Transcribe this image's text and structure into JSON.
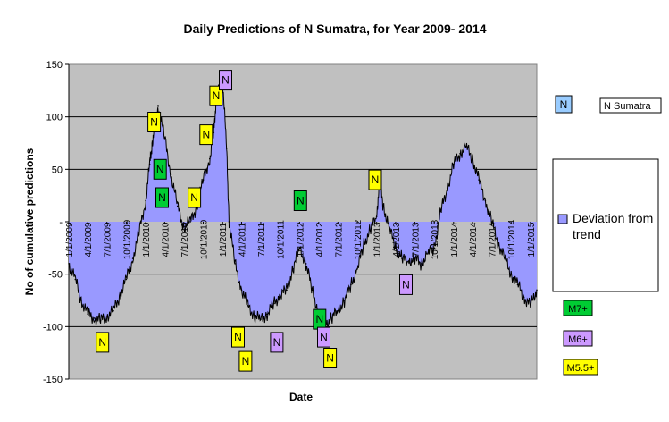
{
  "colors": {
    "plot_bg": "#c0c0c0",
    "area_fill": "#9999ff",
    "line": "#000000",
    "M7": "#00cc33",
    "M6": "#cc99ff",
    "M55": "#ffff00",
    "legend_box": "#99ccff"
  },
  "chart_data": {
    "type": "area",
    "title": "Daily Predictions of N Sumatra, for Year 2009- 2014",
    "xlabel": "Date",
    "ylabel": "No of cumulative predictions",
    "ylim": [
      -150,
      150
    ],
    "yticks": [
      150,
      100,
      50,
      0,
      -50,
      -100,
      -150
    ],
    "ytick_labels": [
      "150",
      "100",
      "50",
      "-",
      "-50",
      "-100",
      "-150"
    ],
    "xlim": [
      "2009-01-01",
      "2015-01-31"
    ],
    "xticks": [
      "1/1/2009",
      "4/1/2009",
      "7/1/2009",
      "10/1/2009",
      "1/1/2010",
      "4/1/2010",
      "7/1/2010",
      "10/1/2010",
      "1/1/2011",
      "4/1/2011",
      "7/1/2011",
      "10/1/2011",
      "1/1/2012",
      "4/1/2012",
      "7/1/2012",
      "10/1/2012",
      "1/1/2013",
      "4/1/2013",
      "7/1/2013",
      "10/1/2013",
      "1/1/2014",
      "4/1/2014",
      "7/1/2014",
      "10/1/2014",
      "1/1/2015"
    ],
    "grid": "horizontal",
    "series": [
      {
        "name": "Deviation from trend",
        "x": [
          "2009-01-01",
          "2009-02-01",
          "2009-03-01",
          "2009-04-01",
          "2009-05-01",
          "2009-06-01",
          "2009-07-01",
          "2009-08-01",
          "2009-09-01",
          "2009-10-01",
          "2009-11-01",
          "2009-12-01",
          "2010-01-01",
          "2010-01-20",
          "2010-02-01",
          "2010-02-15",
          "2010-03-01",
          "2010-04-01",
          "2010-05-01",
          "2010-06-01",
          "2010-07-01",
          "2010-08-01",
          "2010-09-01",
          "2010-10-01",
          "2010-11-01",
          "2010-11-20",
          "2010-12-01",
          "2010-12-20",
          "2011-01-01",
          "2011-01-20",
          "2011-02-01",
          "2011-03-01",
          "2011-04-01",
          "2011-05-01",
          "2011-06-01",
          "2011-07-01",
          "2011-08-01",
          "2011-09-01",
          "2011-10-01",
          "2011-11-01",
          "2011-12-01",
          "2012-01-01",
          "2012-02-01",
          "2012-03-01",
          "2012-04-01",
          "2012-05-01",
          "2012-06-01",
          "2012-07-01",
          "2012-08-01",
          "2012-09-01",
          "2012-10-01",
          "2012-11-01",
          "2012-12-01",
          "2013-01-01",
          "2013-01-15",
          "2013-02-01",
          "2013-03-01",
          "2013-04-01",
          "2013-05-01",
          "2013-06-01",
          "2013-07-01",
          "2013-08-01",
          "2013-09-01",
          "2013-10-01",
          "2013-11-01",
          "2013-12-01",
          "2014-01-01",
          "2014-02-01",
          "2014-03-01",
          "2014-04-01",
          "2014-05-01",
          "2014-06-01",
          "2014-07-01",
          "2014-08-01",
          "2014-09-01",
          "2014-10-01",
          "2014-11-01",
          "2014-12-01",
          "2015-01-01",
          "2015-01-31"
        ],
        "values": [
          -40,
          -55,
          -75,
          -88,
          -92,
          -94,
          -90,
          -85,
          -70,
          -55,
          -35,
          -10,
          20,
          55,
          75,
          95,
          110,
          80,
          45,
          15,
          -5,
          0,
          15,
          40,
          60,
          85,
          115,
          130,
          135,
          70,
          0,
          -40,
          -65,
          -80,
          -90,
          -93,
          -88,
          -78,
          -70,
          -65,
          -45,
          -25,
          -40,
          -65,
          -88,
          -98,
          -92,
          -85,
          -75,
          -60,
          -45,
          -22,
          -8,
          5,
          40,
          15,
          -5,
          -25,
          -35,
          -38,
          -35,
          -40,
          -30,
          -25,
          10,
          30,
          55,
          65,
          72,
          60,
          40,
          20,
          0,
          -20,
          -35,
          -50,
          -60,
          -72,
          -80,
          -65
        ]
      }
    ],
    "markers": [
      {
        "label": "N",
        "class": "M5.5+",
        "date": "2009-06-10",
        "value": -115
      },
      {
        "label": "N",
        "class": "M5.5+",
        "date": "2010-02-10",
        "value": 95
      },
      {
        "label": "N",
        "class": "M7+",
        "date": "2010-03-10",
        "value": 50
      },
      {
        "label": "N",
        "class": "M7+",
        "date": "2010-03-20",
        "value": 23
      },
      {
        "label": "N",
        "class": "M5.5+",
        "date": "2010-08-20",
        "value": 23
      },
      {
        "label": "N",
        "class": "M5.5+",
        "date": "2010-10-15",
        "value": 83
      },
      {
        "label": "N",
        "class": "M5.5+",
        "date": "2010-12-01",
        "value": 120
      },
      {
        "label": "N",
        "class": "M6+",
        "date": "2011-01-15",
        "value": 135
      },
      {
        "label": "N",
        "class": "M5.5+",
        "date": "2011-03-15",
        "value": -110
      },
      {
        "label": "N",
        "class": "M5.5+",
        "date": "2011-04-20",
        "value": -133
      },
      {
        "label": "N",
        "class": "M6+",
        "date": "2011-09-15",
        "value": -115
      },
      {
        "label": "N",
        "class": "M7+",
        "date": "2012-01-05",
        "value": 20
      },
      {
        "label": "N",
        "class": "M7+",
        "date": "2012-04-05",
        "value": -93
      },
      {
        "label": "N",
        "class": "M6+",
        "date": "2012-04-25",
        "value": -110
      },
      {
        "label": "N",
        "class": "M5.5+",
        "date": "2012-05-25",
        "value": -130
      },
      {
        "label": "N",
        "class": "M5.5+",
        "date": "2012-12-25",
        "value": 40
      },
      {
        "label": "N",
        "class": "M6+",
        "date": "2013-05-20",
        "value": -60
      }
    ]
  },
  "legend": {
    "series_marker_label": "N",
    "series_name": "N Sumatra",
    "deviation_label_line1": "Deviation from",
    "deviation_label_line2": "trend",
    "magnitude_items": [
      {
        "label": "M7+",
        "class": "M7+"
      },
      {
        "label": "M6+",
        "class": "M6+"
      },
      {
        "label": "M5.5+",
        "class": "M5.5+"
      }
    ]
  }
}
